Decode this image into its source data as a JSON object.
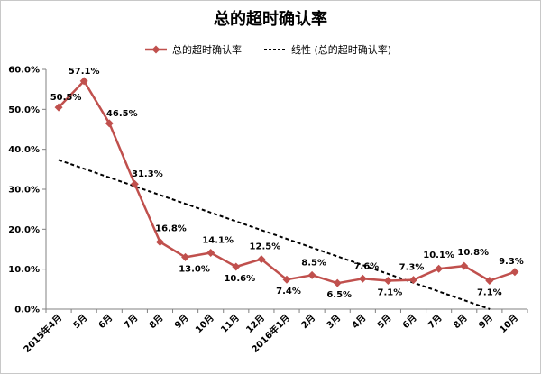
{
  "chart_data": {
    "type": "line",
    "title": "总的超时确认率",
    "categories": [
      "2015年4月",
      "5月",
      "6月",
      "7月",
      "8月",
      "9月",
      "10月",
      "11月",
      "12月",
      "2016年1月",
      "2月",
      "3月",
      "4月",
      "5月",
      "6月",
      "7月",
      "8月",
      "9月",
      "10月"
    ],
    "series": [
      {
        "name": "总的超时确认率",
        "values": [
          50.5,
          57.1,
          46.5,
          31.3,
          16.8,
          13.0,
          14.1,
          10.6,
          12.5,
          7.4,
          8.5,
          6.5,
          7.6,
          7.1,
          7.3,
          10.1,
          10.8,
          7.1,
          9.3
        ],
        "labels": [
          "50.5%",
          "57.1%",
          "46.5%",
          "31.3%",
          "16.8%",
          "13.0%",
          "14.1%",
          "10.6%",
          "12.5%",
          "7.4%",
          "8.5%",
          "6.5%",
          "7.6%",
          "7.1%",
          "7.3%",
          "10.1%",
          "10.8%",
          "7.1%",
          "9.3%"
        ],
        "color": "#c0504d",
        "marker": "diamond"
      },
      {
        "name": "线性 (总的超时确认率)",
        "kind": "linear-trendline",
        "style": "dashed",
        "color": "#000000"
      }
    ],
    "yticks": [
      "0.0%",
      "10.0%",
      "20.0%",
      "30.0%",
      "40.0%",
      "50.0%",
      "60.0%"
    ],
    "ylim": [
      0,
      60
    ],
    "grid": false,
    "legend": "top-center"
  }
}
